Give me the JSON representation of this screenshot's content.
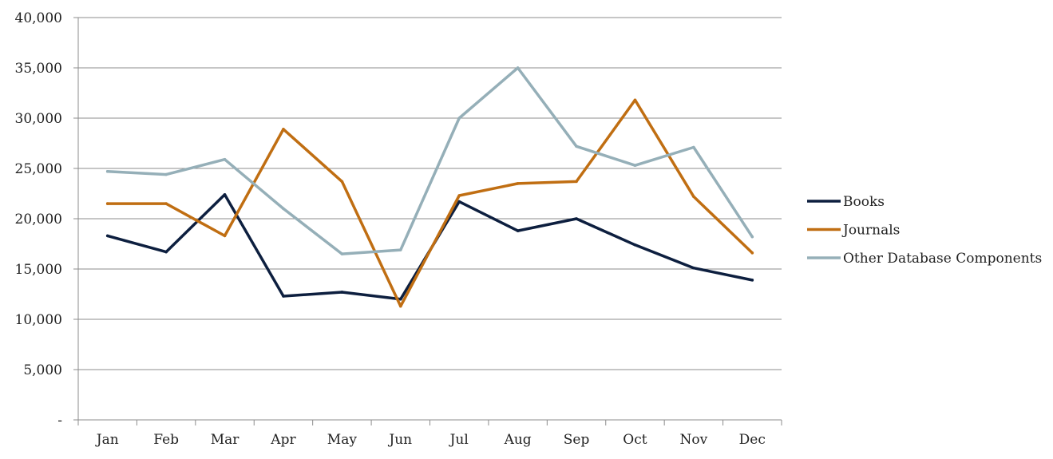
{
  "chart_data": {
    "type": "line",
    "categories": [
      "Jan",
      "Feb",
      "Mar",
      "Apr",
      "May",
      "Jun",
      "Jul",
      "Aug",
      "Sep",
      "Oct",
      "Nov",
      "Dec"
    ],
    "series": [
      {
        "name": "Books",
        "color": "#0d1f3f",
        "values": [
          18300,
          16700,
          22400,
          12300,
          12700,
          12000,
          21700,
          18800,
          20000,
          17400,
          15100,
          13900
        ]
      },
      {
        "name": "Journals",
        "color": "#c06e12",
        "values": [
          21500,
          21500,
          18300,
          28900,
          23700,
          11300,
          22300,
          23500,
          23700,
          31800,
          22200,
          16600
        ]
      },
      {
        "name": "Other Database Components",
        "color": "#95afb8",
        "values": [
          24700,
          24400,
          25900,
          21000,
          16500,
          16900,
          30000,
          35000,
          27200,
          25300,
          27100,
          18200
        ]
      }
    ],
    "yticks": [
      "-",
      "5,000",
      "10,000",
      "15,000",
      "20,000",
      "25,000",
      "30,000",
      "35,000",
      "40,000"
    ],
    "ylim": [
      0,
      40000
    ],
    "title": "",
    "xlabel": "",
    "ylabel": "",
    "grid": true,
    "legend": "right"
  }
}
